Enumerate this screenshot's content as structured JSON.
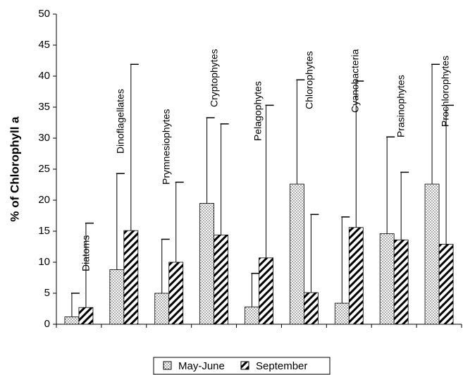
{
  "chart_data": {
    "type": "bar",
    "y_label": "% of Chlorophyll a",
    "categories": [
      "Diatoms",
      "Dinoflagellates",
      "Prymnesiophytes",
      "Cryptophytes",
      "Pelagophytes",
      "Chlorophytes",
      "Cyanobacteria",
      "Prasinophytes",
      "Prochlorophytes"
    ],
    "series": [
      {
        "name": "May-June",
        "pattern": "dots",
        "values": [
          1.2,
          8.8,
          5.0,
          19.5,
          2.8,
          22.6,
          3.4,
          14.6,
          22.6
        ],
        "errors": [
          3.8,
          15.5,
          8.7,
          13.8,
          5.4,
          16.8,
          13.9,
          15.6,
          19.3
        ]
      },
      {
        "name": "September",
        "pattern": "hatch",
        "values": [
          2.7,
          15.1,
          10.0,
          14.4,
          10.7,
          5.1,
          15.6,
          13.6,
          12.9
        ],
        "errors": [
          13.6,
          26.8,
          12.9,
          17.9,
          24.6,
          12.6,
          23.6,
          10.9,
          22.4
        ]
      }
    ],
    "ylim": [
      0,
      50
    ],
    "yticks": [
      0,
      5,
      10,
      15,
      20,
      25,
      30,
      35,
      40,
      45,
      50
    ]
  }
}
